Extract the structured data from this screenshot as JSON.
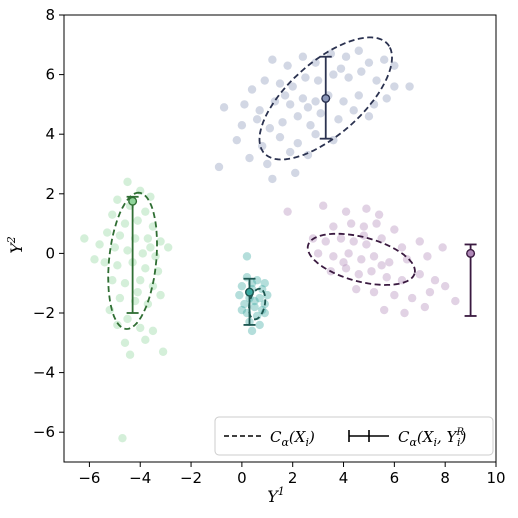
{
  "chart_data": {
    "type": "scatter",
    "title": "",
    "xlabel": "Y",
    "xlabel_sup": "1",
    "ylabel": "Y",
    "ylabel_sup": "2",
    "xlim": [
      -7,
      10
    ],
    "ylim": [
      -7,
      8
    ],
    "xticks": [
      -6,
      -4,
      -2,
      0,
      2,
      4,
      6,
      8,
      10
    ],
    "yticks": [
      -6,
      -4,
      -2,
      0,
      2,
      4,
      6,
      8
    ],
    "grid": false,
    "legend": {
      "placement": "bottom-right",
      "entries": [
        {
          "style": "dashed",
          "label": "C_α(X_i)"
        },
        {
          "style": "errorbar",
          "label": "C_α(X_i, Y_i^R)"
        }
      ]
    },
    "clusters": [
      {
        "color": "#8a96b8",
        "dark": "#2b3250",
        "center": [
          3.3,
          5.2
        ],
        "ellipse": {
          "cx": 3.3,
          "cy": 5.2,
          "rx": 6.1,
          "ry": 2.6,
          "angle_deg": 35
        },
        "errorbar": {
          "x": 3.3,
          "y": 5.2,
          "low": 3.85,
          "high": 6.6
        },
        "points": [
          [
            1.2,
            6.5
          ],
          [
            1.8,
            6.3
          ],
          [
            2.4,
            6.6
          ],
          [
            2.9,
            6.4
          ],
          [
            3.5,
            6.7
          ],
          [
            4.1,
            6.6
          ],
          [
            4.6,
            6.8
          ],
          [
            5.0,
            6.4
          ],
          [
            5.6,
            6.5
          ],
          [
            6.0,
            6.3
          ],
          [
            0.4,
            5.5
          ],
          [
            0.9,
            5.8
          ],
          [
            1.5,
            5.7
          ],
          [
            2.0,
            5.6
          ],
          [
            2.5,
            5.9
          ],
          [
            3.0,
            5.8
          ],
          [
            3.6,
            6.0
          ],
          [
            4.2,
            5.9
          ],
          [
            4.7,
            6.1
          ],
          [
            5.3,
            5.8
          ],
          [
            6.0,
            5.6
          ],
          [
            6.6,
            5.6
          ],
          [
            -0.7,
            4.9
          ],
          [
            0.1,
            5.0
          ],
          [
            0.7,
            4.8
          ],
          [
            1.3,
            5.1
          ],
          [
            1.9,
            5.0
          ],
          [
            2.4,
            5.2
          ],
          [
            2.9,
            5.1
          ],
          [
            3.4,
            5.3
          ],
          [
            4.0,
            5.1
          ],
          [
            4.6,
            5.3
          ],
          [
            5.2,
            5.0
          ],
          [
            5.7,
            5.2
          ],
          [
            0.0,
            4.3
          ],
          [
            0.6,
            4.5
          ],
          [
            1.1,
            4.2
          ],
          [
            1.6,
            4.4
          ],
          [
            2.2,
            4.6
          ],
          [
            2.7,
            4.3
          ],
          [
            3.1,
            4.7
          ],
          [
            3.8,
            4.5
          ],
          [
            4.4,
            4.8
          ],
          [
            5.0,
            4.6
          ],
          [
            -0.2,
            3.8
          ],
          [
            0.8,
            3.6
          ],
          [
            1.5,
            3.9
          ],
          [
            2.2,
            3.7
          ],
          [
            2.9,
            4.0
          ],
          [
            3.6,
            3.8
          ],
          [
            0.3,
            3.2
          ],
          [
            1.0,
            3.0
          ],
          [
            1.9,
            3.4
          ],
          [
            2.6,
            3.3
          ],
          [
            -0.9,
            2.9
          ],
          [
            1.2,
            2.5
          ],
          [
            2.1,
            2.7
          ],
          [
            3.9,
            6.2
          ],
          [
            1.7,
            5.3
          ],
          [
            2.6,
            4.9
          ]
        ]
      },
      {
        "color": "#8fd49a",
        "dark": "#2f6e33",
        "center": [
          -4.3,
          1.75
        ],
        "ellipse": {
          "cx": -4.3,
          "cy": -0.25,
          "rx": 4.6,
          "ry": 1.85,
          "angle_deg": 83
        },
        "errorbar": {
          "x": -4.3,
          "y": 1.75,
          "low": -2.0,
          "high": 1.9
        },
        "points": [
          [
            -4.5,
            2.4
          ],
          [
            -4.0,
            2.1
          ],
          [
            -3.6,
            1.9
          ],
          [
            -4.9,
            1.8
          ],
          [
            -4.4,
            1.6
          ],
          [
            -3.8,
            1.4
          ],
          [
            -5.1,
            1.3
          ],
          [
            -4.6,
            1.0
          ],
          [
            -4.1,
            1.1
          ],
          [
            -3.5,
            0.9
          ],
          [
            -5.3,
            0.7
          ],
          [
            -4.8,
            0.6
          ],
          [
            -4.2,
            0.5
          ],
          [
            -3.7,
            0.5
          ],
          [
            -3.2,
            0.4
          ],
          [
            -5.0,
            0.2
          ],
          [
            -4.5,
            0.1
          ],
          [
            -3.9,
            0.0
          ],
          [
            -3.4,
            -0.1
          ],
          [
            -5.4,
            -0.3
          ],
          [
            -4.9,
            -0.4
          ],
          [
            -4.3,
            -0.3
          ],
          [
            -3.8,
            -0.5
          ],
          [
            -3.3,
            -0.6
          ],
          [
            -5.1,
            -0.9
          ],
          [
            -4.6,
            -1.0
          ],
          [
            -4.0,
            -0.9
          ],
          [
            -3.5,
            -1.1
          ],
          [
            -4.8,
            -1.5
          ],
          [
            -4.2,
            -1.6
          ],
          [
            -3.7,
            -1.7
          ],
          [
            -5.2,
            -1.9
          ],
          [
            -3.2,
            -1.4
          ],
          [
            -4.5,
            -2.2
          ],
          [
            -4.0,
            -2.5
          ],
          [
            -3.5,
            -2.6
          ],
          [
            -4.6,
            -3.0
          ],
          [
            -3.8,
            -2.9
          ],
          [
            -4.4,
            -3.4
          ],
          [
            -3.1,
            -3.3
          ],
          [
            -6.2,
            0.5
          ],
          [
            -5.6,
            0.3
          ],
          [
            -5.8,
            -0.2
          ],
          [
            -2.9,
            0.2
          ],
          [
            -4.7,
            -6.2
          ],
          [
            -4.1,
            -1.3
          ],
          [
            -3.6,
            0.2
          ],
          [
            -4.9,
            -2.4
          ]
        ]
      },
      {
        "color": "#3aa9a0",
        "dark": "#1d5650",
        "center": [
          0.3,
          -1.3
        ],
        "ellipse": {
          "cx": 0.6,
          "cy": -1.7,
          "rx": 1.05,
          "ry": 0.6,
          "angle_deg": 75
        },
        "errorbar": {
          "x": 0.3,
          "y": -1.3,
          "low": -2.4,
          "high": -0.85
        },
        "points": [
          [
            0.2,
            -0.8
          ],
          [
            0.6,
            -0.9
          ],
          [
            0.9,
            -1.0
          ],
          [
            0.0,
            -1.1
          ],
          [
            0.4,
            -1.2
          ],
          [
            0.8,
            -1.2
          ],
          [
            -0.1,
            -1.4
          ],
          [
            0.3,
            -1.5
          ],
          [
            0.7,
            -1.5
          ],
          [
            1.0,
            -1.4
          ],
          [
            0.1,
            -1.7
          ],
          [
            0.5,
            -1.8
          ],
          [
            0.9,
            -1.7
          ],
          [
            0.2,
            -2.0
          ],
          [
            0.6,
            -2.1
          ],
          [
            0.9,
            -2.0
          ],
          [
            0.3,
            -2.3
          ],
          [
            0.7,
            -2.4
          ],
          [
            0.4,
            -2.6
          ],
          [
            0.2,
            -0.1
          ],
          [
            0.5,
            -1.6
          ],
          [
            0.4,
            -1.0
          ],
          [
            0.8,
            -1.9
          ],
          [
            0.0,
            -1.9
          ]
        ]
      },
      {
        "color": "#b088b8",
        "dark": "#3a1a40",
        "center": [
          9.0,
          0.0
        ],
        "ellipse": {
          "cx": 4.7,
          "cy": -0.2,
          "rx": 4.3,
          "ry": 1.5,
          "angle_deg": -12
        },
        "errorbar": {
          "x": 9.0,
          "y": 0.0,
          "low": -2.1,
          "high": 0.3
        },
        "points": [
          [
            3.2,
            1.6
          ],
          [
            4.1,
            1.4
          ],
          [
            4.9,
            1.5
          ],
          [
            5.4,
            1.3
          ],
          [
            3.6,
            0.9
          ],
          [
            4.3,
            1.0
          ],
          [
            4.8,
            0.9
          ],
          [
            5.3,
            1.0
          ],
          [
            6.0,
            0.8
          ],
          [
            2.8,
            0.5
          ],
          [
            3.3,
            0.4
          ],
          [
            3.9,
            0.5
          ],
          [
            4.4,
            0.4
          ],
          [
            4.9,
            0.3
          ],
          [
            5.5,
            0.5
          ],
          [
            6.3,
            0.2
          ],
          [
            7.0,
            0.4
          ],
          [
            3.0,
            0.0
          ],
          [
            3.6,
            -0.1
          ],
          [
            4.2,
            0.0
          ],
          [
            4.7,
            -0.2
          ],
          [
            5.2,
            -0.1
          ],
          [
            5.8,
            -0.3
          ],
          [
            6.5,
            -0.2
          ],
          [
            7.3,
            -0.1
          ],
          [
            7.9,
            0.2
          ],
          [
            3.5,
            -0.6
          ],
          [
            4.1,
            -0.5
          ],
          [
            4.6,
            -0.7
          ],
          [
            5.1,
            -0.6
          ],
          [
            5.7,
            -0.8
          ],
          [
            6.3,
            -0.9
          ],
          [
            7.0,
            -0.7
          ],
          [
            7.6,
            -0.9
          ],
          [
            4.5,
            -1.2
          ],
          [
            5.2,
            -1.3
          ],
          [
            6.0,
            -1.4
          ],
          [
            6.7,
            -1.5
          ],
          [
            7.4,
            -1.3
          ],
          [
            8.0,
            -1.1
          ],
          [
            5.6,
            -1.9
          ],
          [
            6.4,
            -2.0
          ],
          [
            7.2,
            -1.8
          ],
          [
            1.8,
            1.4
          ],
          [
            8.4,
            -1.6
          ],
          [
            4.0,
            -0.3
          ],
          [
            4.8,
            0.6
          ],
          [
            5.5,
            -0.4
          ]
        ]
      }
    ]
  }
}
